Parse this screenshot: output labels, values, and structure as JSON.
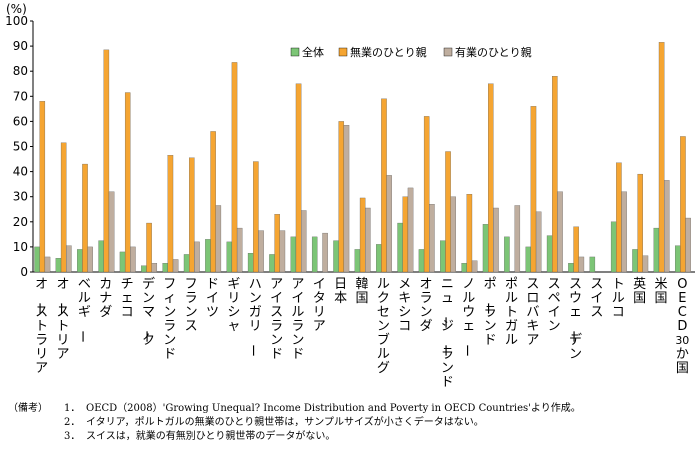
{
  "chart_data": {
    "type": "bar",
    "y_unit": "(%)",
    "ylim": [
      0,
      100
    ],
    "yticks": [
      0,
      10,
      20,
      30,
      40,
      50,
      60,
      70,
      80,
      90,
      100
    ],
    "grid": false,
    "legend_position": "top-right",
    "categories": [
      "オーストラリア",
      "オーストリア",
      "ベルギー",
      "カナダ",
      "チェコ",
      "デンマーク",
      "フィンランド",
      "フランス",
      "ドイツ",
      "ギリシャ",
      "ハンガリー",
      "アイスランド",
      "アイルランド",
      "イタリア",
      "日本",
      "韓国",
      "ルクセンブルグ",
      "メキシコ",
      "オランダ",
      "ニュージーランド",
      "ノルウェー",
      "ポーランド",
      "ポルトガル",
      "スロバキア",
      "スペイン",
      "スウェーデン",
      "スイス",
      "トルコ",
      "英国",
      "米国",
      "OECD30か国"
    ],
    "series": [
      {
        "name": "全体",
        "color": "#7cc576",
        "values": [
          10,
          5.5,
          9,
          12.5,
          8,
          2.5,
          3.5,
          7,
          13,
          12,
          7.5,
          7,
          14,
          14,
          12.5,
          9,
          11,
          19.5,
          9,
          12.5,
          3.5,
          19,
          14,
          10,
          14.5,
          3.5,
          6,
          20,
          9,
          17.5,
          10.5
        ]
      },
      {
        "name": "無業のひとり親",
        "color": "#f5a532",
        "values": [
          68,
          51.5,
          43,
          88.5,
          71.5,
          19.5,
          46.5,
          45.5,
          56,
          83.5,
          44,
          23,
          75,
          null,
          60,
          29.5,
          69,
          30,
          62,
          48,
          31,
          75,
          null,
          66,
          78,
          18,
          null,
          43.5,
          39,
          91.5,
          54
        ]
      },
      {
        "name": "有業のひとり親",
        "color": "#bfae9f",
        "values": [
          6,
          10.5,
          10,
          32,
          10,
          3.5,
          5,
          12,
          26.5,
          17.5,
          16.5,
          16.5,
          24.5,
          15.5,
          58.5,
          25.5,
          38.5,
          33.5,
          27,
          30,
          4.5,
          25.5,
          26.5,
          24,
          32,
          6,
          null,
          32,
          6.5,
          36.5,
          21.5
        ]
      }
    ]
  },
  "notes": {
    "lead": "（備考）",
    "items": [
      {
        "num": "1．",
        "text": "OECD（2008）'Growing Unequal? Income Distribution and Poverty in OECD Countries'より作成。"
      },
      {
        "num": "2．",
        "text": "イタリア，ポルトガルの無業のひとり親世帯は，サンプルサイズが小さくデータはない。"
      },
      {
        "num": "3．",
        "text": "スイスは，就業の有無別ひとり親世帯のデータがない。"
      }
    ]
  }
}
